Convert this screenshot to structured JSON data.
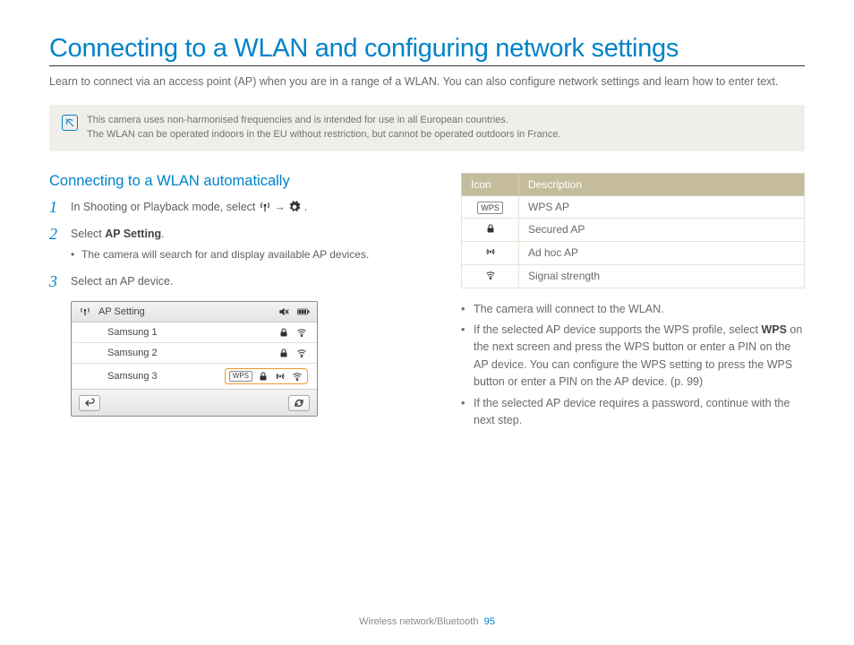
{
  "colors": {
    "accent": "#0082c8",
    "text": "#5f5f5f",
    "note_bg": "#efeeea",
    "table_header_bg": "#c4bc9b",
    "table_header_text": "#ffffff",
    "selected_border": "#eb9b2d"
  },
  "page_title": "Connecting to a WLAN and configuring network settings",
  "intro": "Learn to connect via an access point (AP) when you are in a range of a WLAN. You can also configure network settings and learn how to enter text.",
  "note": {
    "line1": "This camera uses non-harmonised frequencies and is intended for use in all European countries.",
    "line2": "The WLAN can be operated indoors in the EU without restriction, but cannot be operated outdoors in France."
  },
  "section_heading": "Connecting to a WLAN automatically",
  "steps": {
    "1": {
      "num": "1",
      "text_before": "In Shooting or Playback mode, select ",
      "arrow": " → ",
      "period": "."
    },
    "2": {
      "num": "2",
      "text_before": "Select ",
      "bold": "AP Setting",
      "after": ".",
      "sub": "The camera will search for and display available AP devices."
    },
    "3": {
      "num": "3",
      "text": "Select an AP device."
    }
  },
  "ap_panel": {
    "title": "AP Setting",
    "rows": [
      {
        "name": "Samsung 1",
        "wps": false,
        "lock": true,
        "adhoc": false,
        "wifi": true,
        "selected": false
      },
      {
        "name": "Samsung 2",
        "wps": false,
        "lock": true,
        "adhoc": false,
        "wifi": true,
        "selected": false
      },
      {
        "name": "Samsung 3",
        "wps": true,
        "lock": true,
        "adhoc": true,
        "wifi": true,
        "selected": true
      }
    ],
    "wps_label": "WPS"
  },
  "icon_table": {
    "headers": {
      "icon": "Icon",
      "desc": "Description"
    },
    "rows": [
      {
        "icon_text": "WPS",
        "icon_type": "wps",
        "desc": "WPS AP"
      },
      {
        "icon_text": "",
        "icon_type": "lock",
        "desc": "Secured AP"
      },
      {
        "icon_text": "",
        "icon_type": "adhoc",
        "desc": "Ad hoc AP"
      },
      {
        "icon_text": "",
        "icon_type": "wifi",
        "desc": "Signal strength"
      }
    ]
  },
  "bullets": {
    "0": "The camera will connect to the WLAN.",
    "1_before": "If the selected AP device supports the WPS profile, select ",
    "1_bold": "WPS",
    "1_after": " on the next screen and press the WPS button or enter a PIN on the AP device. You can configure the WPS setting to press the WPS button or enter a PIN on the AP device. (p. 99)",
    "2": "If the selected AP device requires a password, continue with the next step."
  },
  "footer": {
    "section": "Wireless network/Bluetooth",
    "page": "95"
  }
}
